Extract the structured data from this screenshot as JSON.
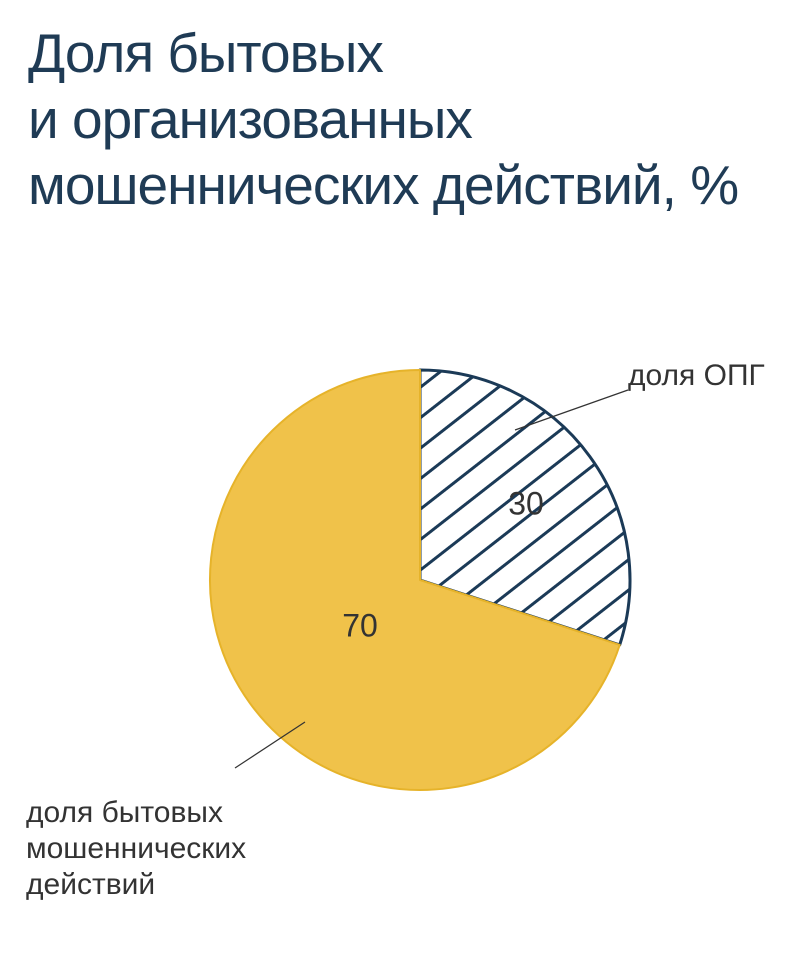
{
  "title_lines": [
    "Доля бытовых",
    "и организованных",
    "мошеннических действий, %"
  ],
  "chart_data": {
    "type": "pie",
    "title": "Доля бытовых и организованных мошеннических действий, %",
    "slices": [
      {
        "name": "доля ОПГ",
        "value": 30,
        "value_label": "30",
        "color": "#1b3a57",
        "fill": "hatched",
        "label_lines": [
          "доля ОПГ"
        ]
      },
      {
        "name": "доля бытовых мошеннических действий",
        "value": 70,
        "value_label": "70",
        "color": "#f0c24a",
        "fill": "solid",
        "label_lines": [
          "доля бытовых",
          "мошеннических",
          "действий"
        ]
      }
    ],
    "start": "12 o'clock",
    "direction": "clockwise",
    "legend": "callout labels"
  }
}
